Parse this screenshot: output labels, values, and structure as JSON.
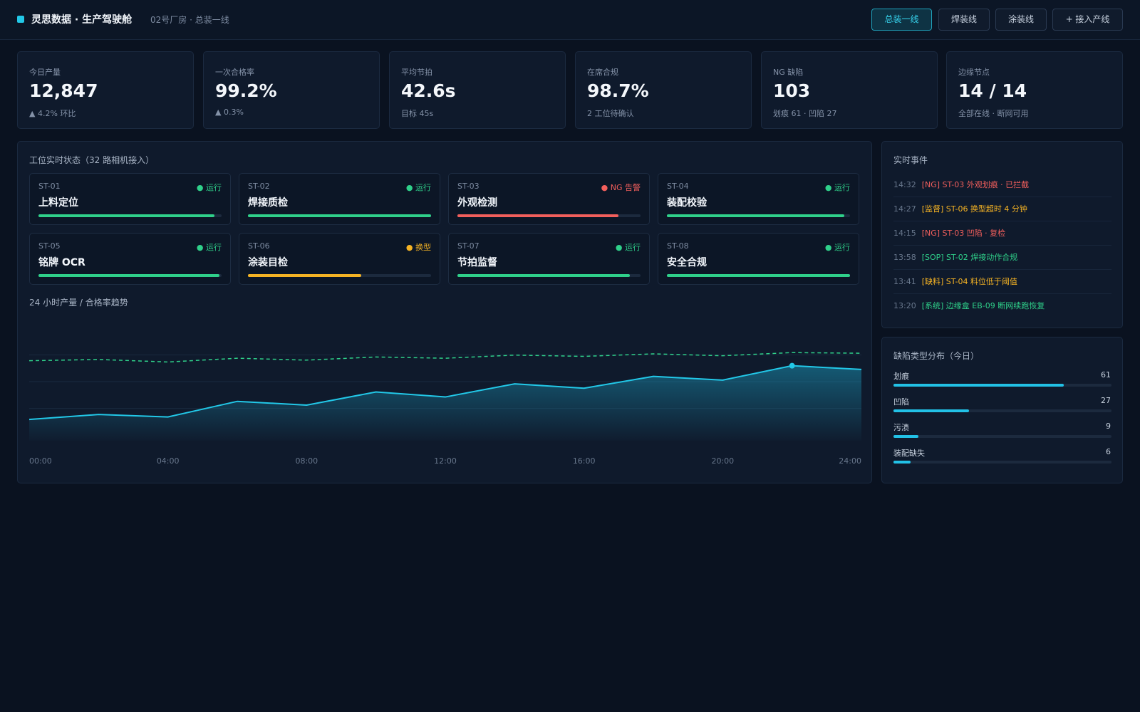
{
  "header": {
    "title": "灵思数据 · 生产驾驶舱",
    "subtitle": "02号厂房 · 总装一线",
    "buttons": [
      {
        "label": "总装一线",
        "active": true
      },
      {
        "label": "焊装线",
        "active": false
      },
      {
        "label": "涂装线",
        "active": false
      },
      {
        "label": "+ 接入产线",
        "active": false
      }
    ]
  },
  "kpis": [
    {
      "label": "今日产量",
      "value": "12,847",
      "note": "▲ 4.2% 环比"
    },
    {
      "label": "一次合格率",
      "value": "99.2%",
      "note": "▲ 0.3%"
    },
    {
      "label": "平均节拍",
      "value": "42.6s",
      "note": "目标 45s"
    },
    {
      "label": "在席合规",
      "value": "98.7%",
      "note": "2 工位待确认"
    },
    {
      "label": "NG 缺陷",
      "value": "103",
      "note": "划痕 61 · 凹陷 27"
    },
    {
      "label": "边缘节点",
      "value": "14 / 14",
      "note": "全部在线 · 断网可用"
    }
  ],
  "stations_panel": {
    "title": "工位实时状态（32 路相机接入）",
    "stations": [
      {
        "id": "ST-01",
        "name": "上料定位",
        "status": "● 运行",
        "color": "#2fd08a",
        "progress": 0.96
      },
      {
        "id": "ST-02",
        "name": "焊接质检",
        "status": "● 运行",
        "color": "#2fd08a",
        "progress": 1.0
      },
      {
        "id": "ST-03",
        "name": "外观检测",
        "status": "● NG 告警",
        "color": "#f25f5c",
        "progress": 0.88
      },
      {
        "id": "ST-04",
        "name": "装配校验",
        "status": "● 运行",
        "color": "#2fd08a",
        "progress": 0.97
      },
      {
        "id": "ST-05",
        "name": "铭牌 OCR",
        "status": "● 运行",
        "color": "#2fd08a",
        "progress": 0.99
      },
      {
        "id": "ST-06",
        "name": "涂装目检",
        "status": "● 换型",
        "color": "#f5b324",
        "progress": 0.62
      },
      {
        "id": "ST-07",
        "name": "节拍监督",
        "status": "● 运行",
        "color": "#2fd08a",
        "progress": 0.94
      },
      {
        "id": "ST-08",
        "name": "安全合规",
        "status": "● 运行",
        "color": "#2fd08a",
        "progress": 1.0
      }
    ]
  },
  "trend": {
    "title": "24 小时产量 / 合格率趋势"
  },
  "chart_data": {
    "type": "area",
    "x": [
      "00:00",
      "02:00",
      "04:00",
      "06:00",
      "08:00",
      "10:00",
      "12:00",
      "14:00",
      "16:00",
      "18:00",
      "20:00",
      "22:00",
      "24:00"
    ],
    "xticks": [
      "00:00",
      "04:00",
      "08:00",
      "12:00",
      "16:00",
      "20:00",
      "24:00"
    ],
    "series": [
      {
        "role": "output",
        "style": "solid-area",
        "color": "#22c8e8",
        "values": [
          34,
          42,
          38,
          63,
          57,
          78,
          70,
          91,
          84,
          103,
          97,
          120,
          114
        ]
      },
      {
        "role": "yield",
        "style": "dashed",
        "color": "#2fd08a",
        "values": [
          128,
          130,
          126,
          132,
          129,
          134,
          132,
          137,
          135,
          139,
          136,
          141,
          140
        ]
      }
    ],
    "highlight_index": 11,
    "ylim": [
      0,
      180
    ],
    "grid": true
  },
  "events_panel": {
    "title": "实时事件",
    "events": [
      {
        "time": "14:32",
        "text": "[NG] ST-03 外观划痕 · 已拦截",
        "color": "#f25f5c"
      },
      {
        "time": "14:27",
        "text": "[监督] ST-06 换型超时 4 分钟",
        "color": "#f5b324"
      },
      {
        "time": "14:15",
        "text": "[NG] ST-03 凹陷 · 复检",
        "color": "#f25f5c"
      },
      {
        "time": "13:58",
        "text": "[SOP] ST-02 焊接动作合规",
        "color": "#2fd08a"
      },
      {
        "time": "13:41",
        "text": "[缺料] ST-04 料位低于阈值",
        "color": "#f5b324"
      },
      {
        "time": "13:20",
        "text": "[系统] 边缘盒 EB-09 断网续跑恢复",
        "color": "#2fd08a"
      }
    ]
  },
  "defects_panel": {
    "title": "缺陷类型分布（今日）",
    "max": 78,
    "items": [
      {
        "label": "划痕",
        "count": "61",
        "value": 61
      },
      {
        "label": "凹陷",
        "count": "27",
        "value": 27
      },
      {
        "label": "污渍",
        "count": "9",
        "value": 9
      },
      {
        "label": "装配缺失",
        "count": "6",
        "value": 6
      }
    ]
  }
}
